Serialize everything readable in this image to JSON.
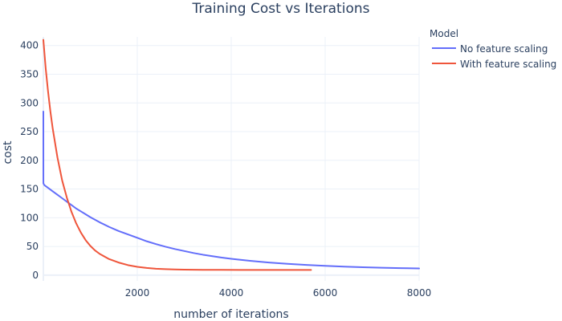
{
  "chart_data": {
    "type": "line",
    "title": "Training Cost vs Iterations",
    "xlabel": "number of iterations",
    "ylabel": "cost",
    "xlim": [
      0,
      8000
    ],
    "ylim": [
      -10,
      415
    ],
    "xticks": [
      2000,
      4000,
      6000,
      8000
    ],
    "yticks": [
      0,
      50,
      100,
      150,
      200,
      250,
      300,
      350,
      400
    ],
    "grid": true,
    "legend": {
      "title": "Model",
      "placement": "top-right-outside"
    },
    "series": [
      {
        "name": "No feature scaling",
        "color": "#636efa",
        "x": [
          0,
          1,
          20,
          50,
          100,
          200,
          300,
          400,
          500,
          600,
          700,
          800,
          900,
          1000,
          1200,
          1400,
          1600,
          1800,
          2000,
          2200,
          2400,
          2600,
          2800,
          3000,
          3200,
          3400,
          3600,
          3800,
          4000,
          4400,
          4800,
          5200,
          5600,
          6000,
          6400,
          6800,
          7200,
          7600,
          8000
        ],
        "y": [
          285,
          160,
          157,
          155,
          152,
          146,
          140,
          134,
          128,
          122,
          116,
          111,
          106,
          101,
          92,
          84,
          77,
          71,
          65,
          59,
          54,
          49.5,
          45.5,
          42,
          38.5,
          35.5,
          33,
          30.5,
          28.5,
          25,
          22,
          19.7,
          17.8,
          16.2,
          14.9,
          13.8,
          12.9,
          12.2,
          11.6
        ]
      },
      {
        "name": "With feature scaling",
        "color": "#ef553b",
        "x": [
          0,
          50,
          100,
          150,
          200,
          300,
          400,
          500,
          600,
          700,
          800,
          900,
          1000,
          1100,
          1200,
          1400,
          1600,
          1800,
          2000,
          2200,
          2400,
          2600,
          2800,
          3000,
          3400,
          3800,
          4200,
          4600,
          5000,
          5400,
          5700
        ],
        "y": [
          410,
          360,
          320,
          285,
          255,
          205,
          165,
          135,
          110,
          90,
          74,
          61,
          51,
          43,
          37,
          28,
          22,
          17.5,
          14.5,
          12.5,
          11.2,
          10.4,
          9.9,
          9.6,
          9.3,
          9.2,
          9.1,
          9.1,
          9.1,
          9.1,
          9.1
        ]
      }
    ]
  }
}
